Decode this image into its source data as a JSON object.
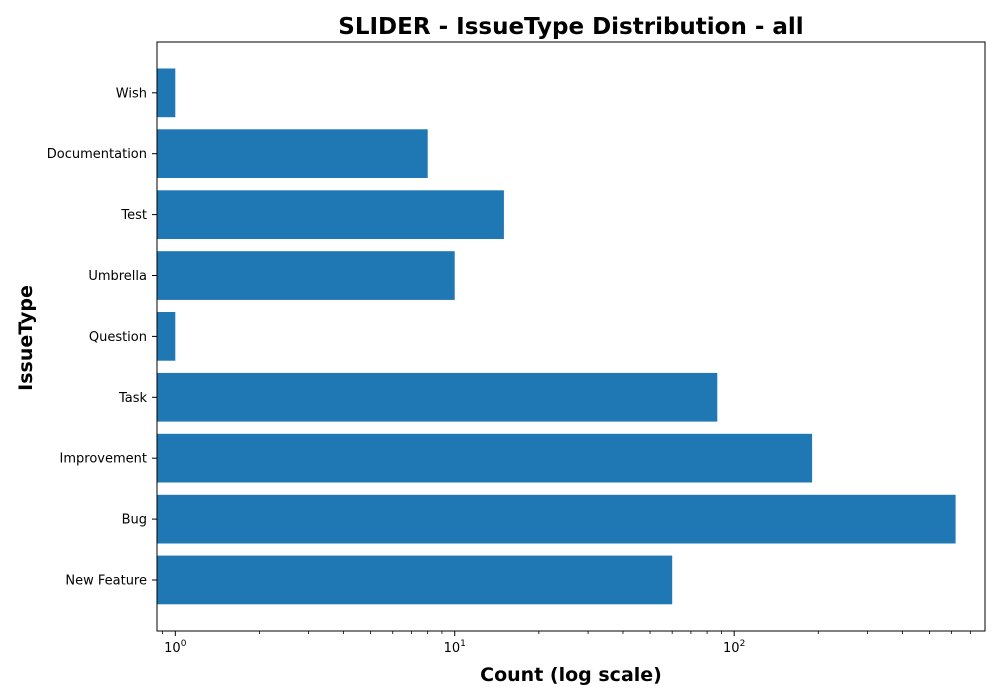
{
  "chart_data": {
    "type": "bar",
    "orientation": "horizontal",
    "title": "SLIDER - IssueType Distribution - all",
    "xlabel": "Count (log scale)",
    "ylabel": "IssueType",
    "x_scale": "log",
    "xlim": [
      0.86,
      790
    ],
    "x_ticks": [
      {
        "value": 1,
        "base": "10",
        "exp": "0"
      },
      {
        "value": 10,
        "base": "10",
        "exp": "1"
      },
      {
        "value": 100,
        "base": "10",
        "exp": "2"
      }
    ],
    "categories": [
      "New Feature",
      "Bug",
      "Improvement",
      "Task",
      "Question",
      "Umbrella",
      "Test",
      "Documentation",
      "Wish"
    ],
    "values": [
      60,
      620,
      190,
      87,
      1,
      10,
      15,
      8,
      1
    ],
    "bar_color": "#1f77b4",
    "grid": false,
    "legend": "none"
  }
}
